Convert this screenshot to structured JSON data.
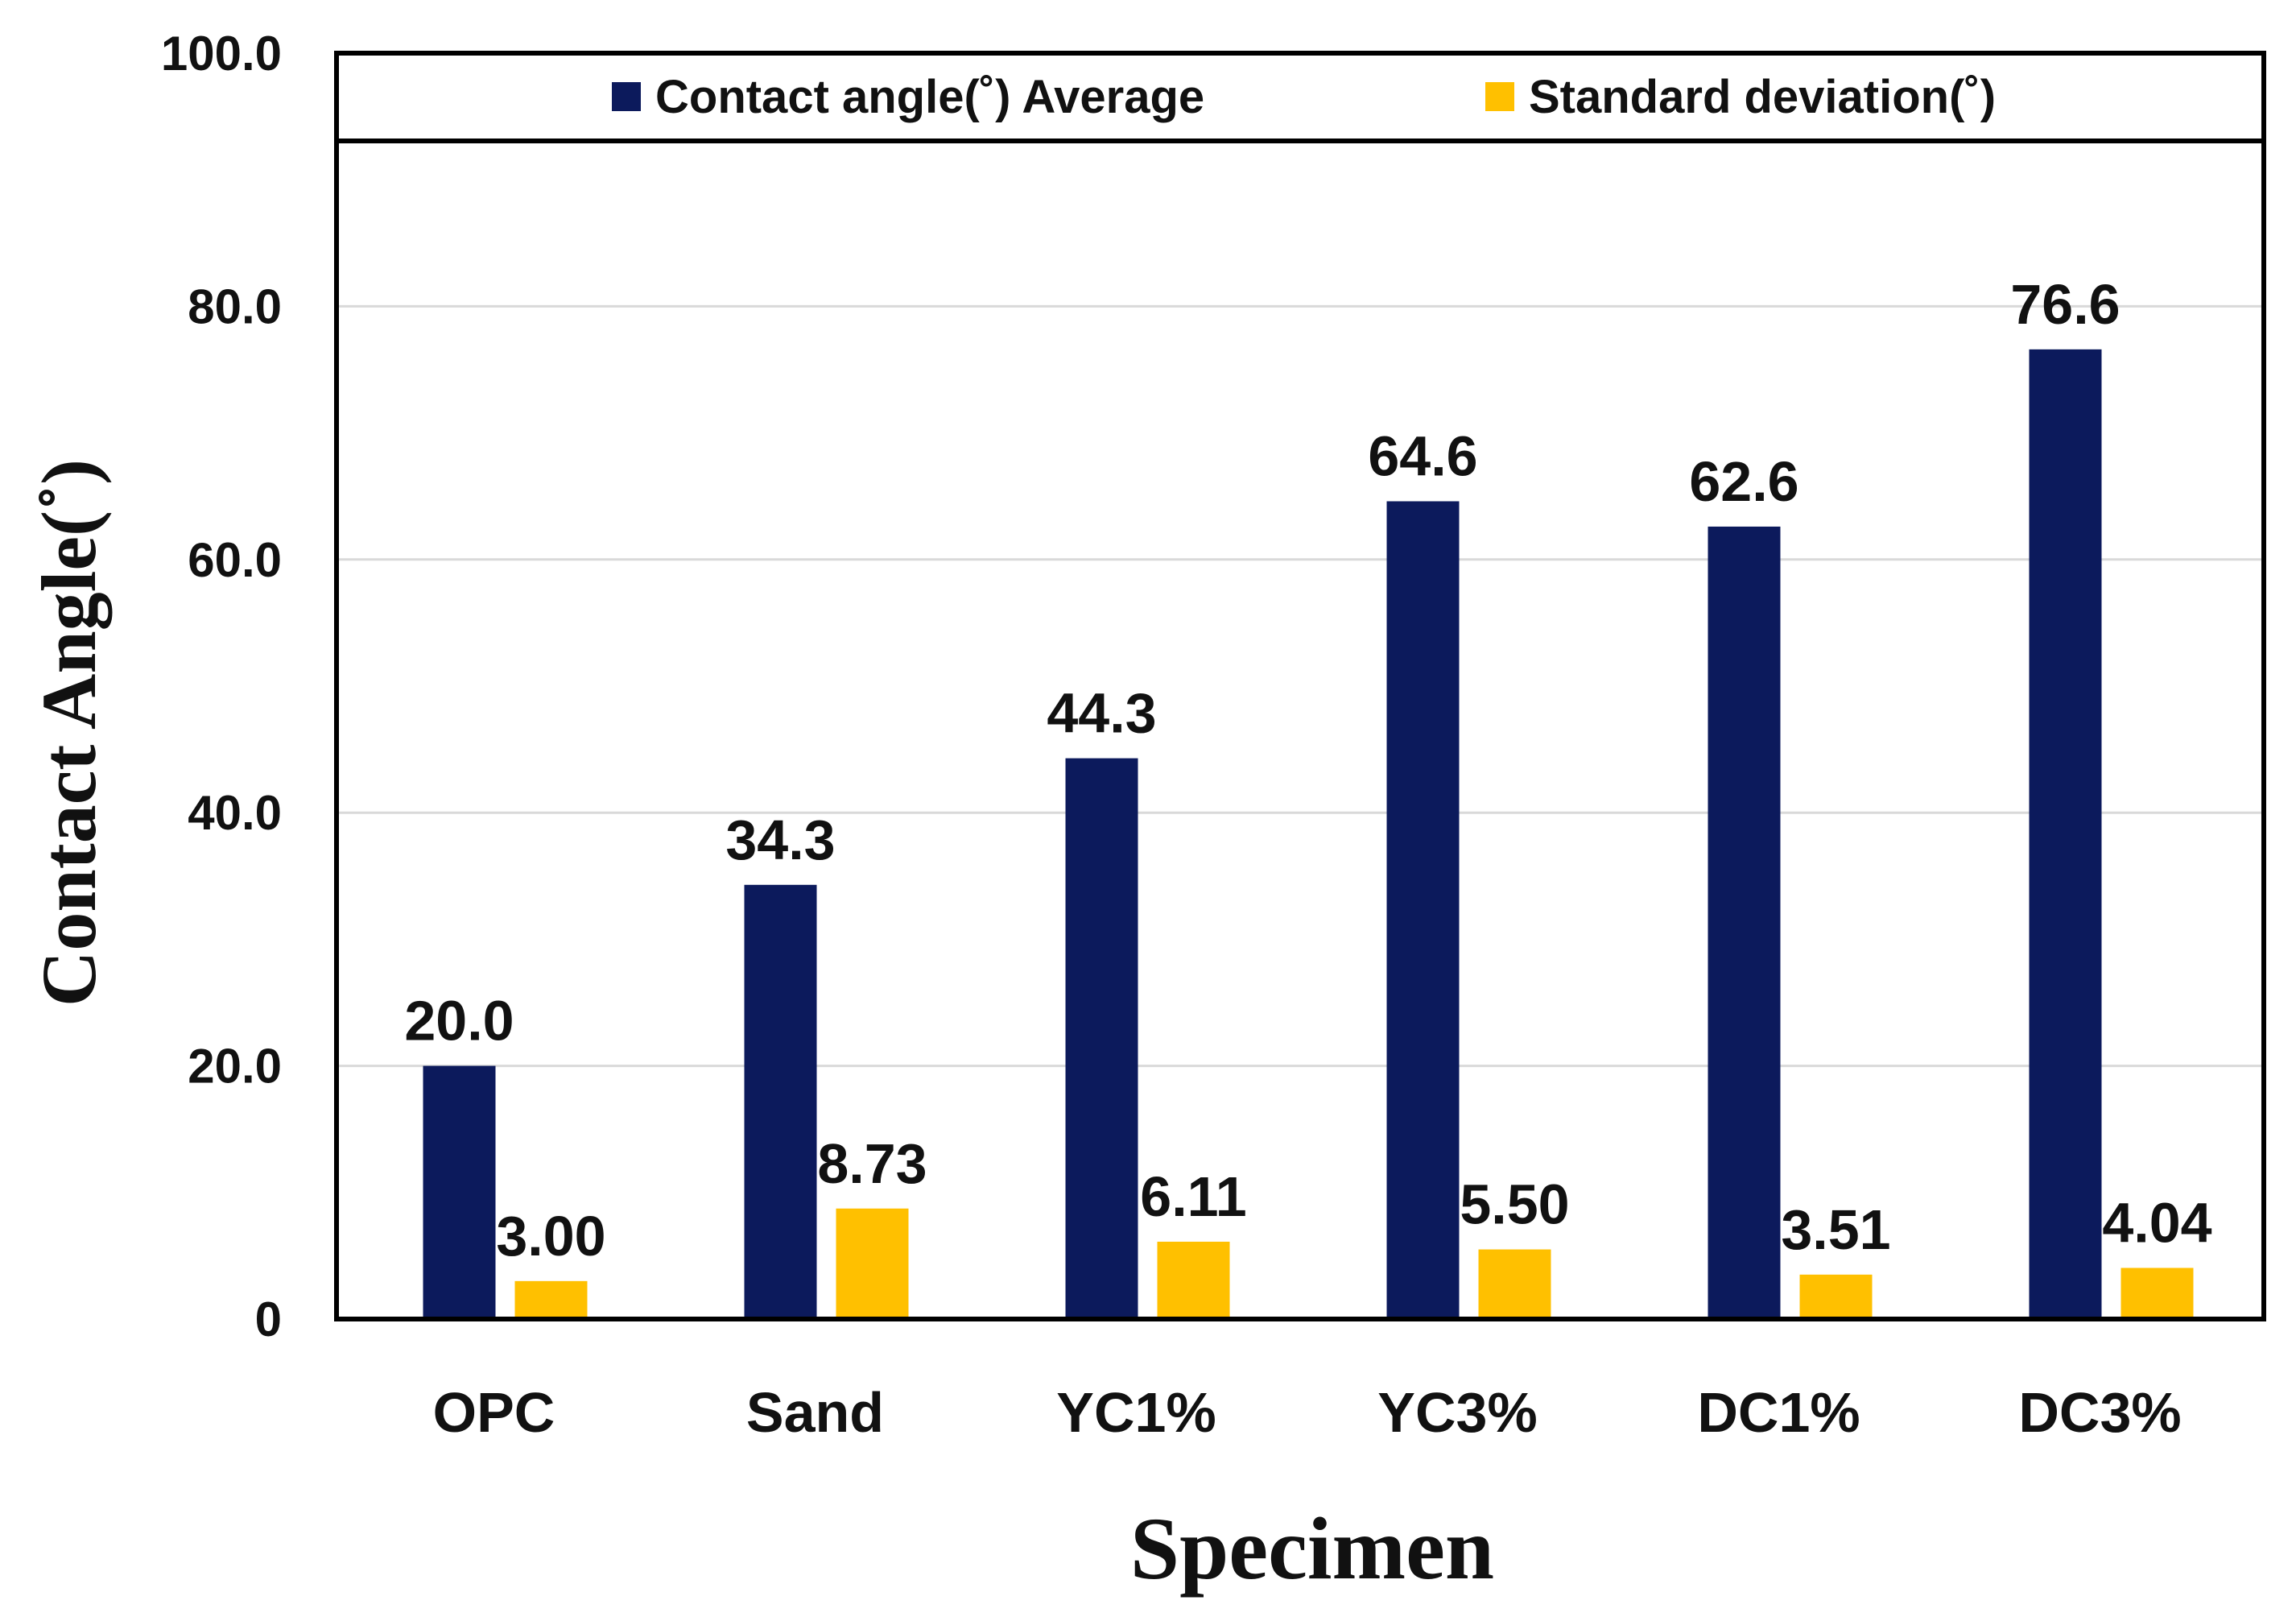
{
  "chart_data": {
    "type": "bar",
    "xlabel": "Specimen",
    "ylabel": "Contact Angle(˚)",
    "ylim": [
      0,
      100
    ],
    "y_ticks": [
      0,
      20,
      40,
      60,
      80,
      100
    ],
    "y_tick_labels": [
      "0",
      "20.0",
      "40.0",
      "60.0",
      "80.0",
      "100.0"
    ],
    "grid": true,
    "legend_position": "top",
    "categories": [
      "OPC",
      "Sand",
      "YC1%",
      "YC3%",
      "DC1%",
      "DC3%"
    ],
    "series": [
      {
        "name": "Contact angle(˚) Average",
        "color": "#0c1a5c",
        "values": [
          20.0,
          34.3,
          44.3,
          64.6,
          62.6,
          76.6
        ],
        "labels": [
          "20.0",
          "34.3",
          "44.3",
          "64.6",
          "62.6",
          "76.6"
        ]
      },
      {
        "name": "Standard deviation(˚)",
        "color": "#ffc000",
        "values": [
          3.0,
          8.73,
          6.11,
          5.5,
          3.51,
          4.04
        ],
        "labels": [
          "3.00",
          "8.73",
          "6.11",
          "5.50",
          "3.51",
          "4.04"
        ]
      }
    ]
  }
}
